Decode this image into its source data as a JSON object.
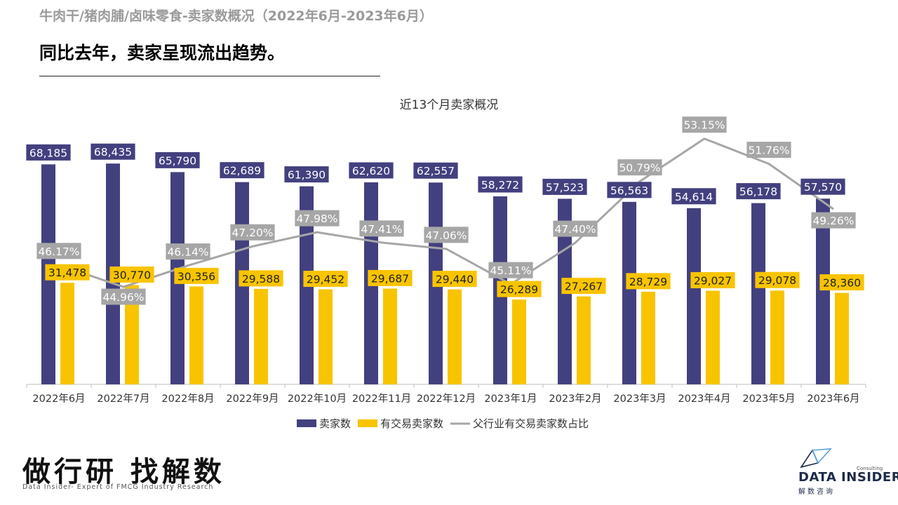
{
  "page": {
    "super_title": "牛肉干/猪肉脯/卤味零食-卖家数概况（2022年6月-2023年6月）",
    "headline": "同比去年，卖家呈现流出趋势。"
  },
  "chart_data": {
    "type": "bar",
    "title": "近13个月卖家概况",
    "categories": [
      "2022年6月",
      "2022年7月",
      "2022年8月",
      "2022年9月",
      "2022年10月",
      "2022年11月",
      "2022年12月",
      "2023年1月",
      "2023年2月",
      "2023年3月",
      "2023年4月",
      "2023年5月",
      "2023年6月"
    ],
    "series": [
      {
        "name": "卖家数",
        "kind": "bar",
        "color": "#43407f",
        "values": [
          68185,
          68435,
          65790,
          62689,
          61390,
          62620,
          62557,
          58272,
          57523,
          56563,
          54614,
          56178,
          57570
        ],
        "labels": [
          "68,185",
          "68,435",
          "65,790",
          "62,689",
          "61,390",
          "62,620",
          "62,557",
          "58,272",
          "57,523",
          "56,563",
          "54,614",
          "56,178",
          "57,570"
        ]
      },
      {
        "name": "有交易卖家数",
        "kind": "bar",
        "color": "#f8c400",
        "values": [
          31478,
          30770,
          30356,
          29588,
          29452,
          29687,
          29440,
          26289,
          27267,
          28729,
          29027,
          29078,
          28360
        ],
        "labels": [
          "31,478",
          "30,770",
          "30,356",
          "29,588",
          "29,452",
          "29,687",
          "29,440",
          "26,289",
          "27,267",
          "28,729",
          "29,027",
          "29,078",
          "28,360"
        ]
      },
      {
        "name": "父行业有交易卖家数占比",
        "kind": "line",
        "color": "#a6a6a6",
        "values": [
          46.17,
          44.96,
          46.14,
          47.2,
          47.98,
          47.41,
          47.06,
          45.11,
          47.4,
          50.79,
          53.15,
          51.76,
          49.26
        ],
        "labels": [
          "46.17%",
          "44.96%",
          "46.14%",
          "47.20%",
          "47.98%",
          "47.41%",
          "47.06%",
          "45.11%",
          "47.40%",
          "50.79%",
          "53.15%",
          "51.76%",
          "49.26%"
        ]
      }
    ],
    "legend_position": "bottom",
    "grid": false
  },
  "footer": {
    "slogan": "做行研 找解数",
    "slogan_sub": "Data Insider- Expert of FMCG Industry Research",
    "logo_name": "DATA INSIDER",
    "logo_tag": "Consulting",
    "logo_cn": "解数咨询"
  }
}
